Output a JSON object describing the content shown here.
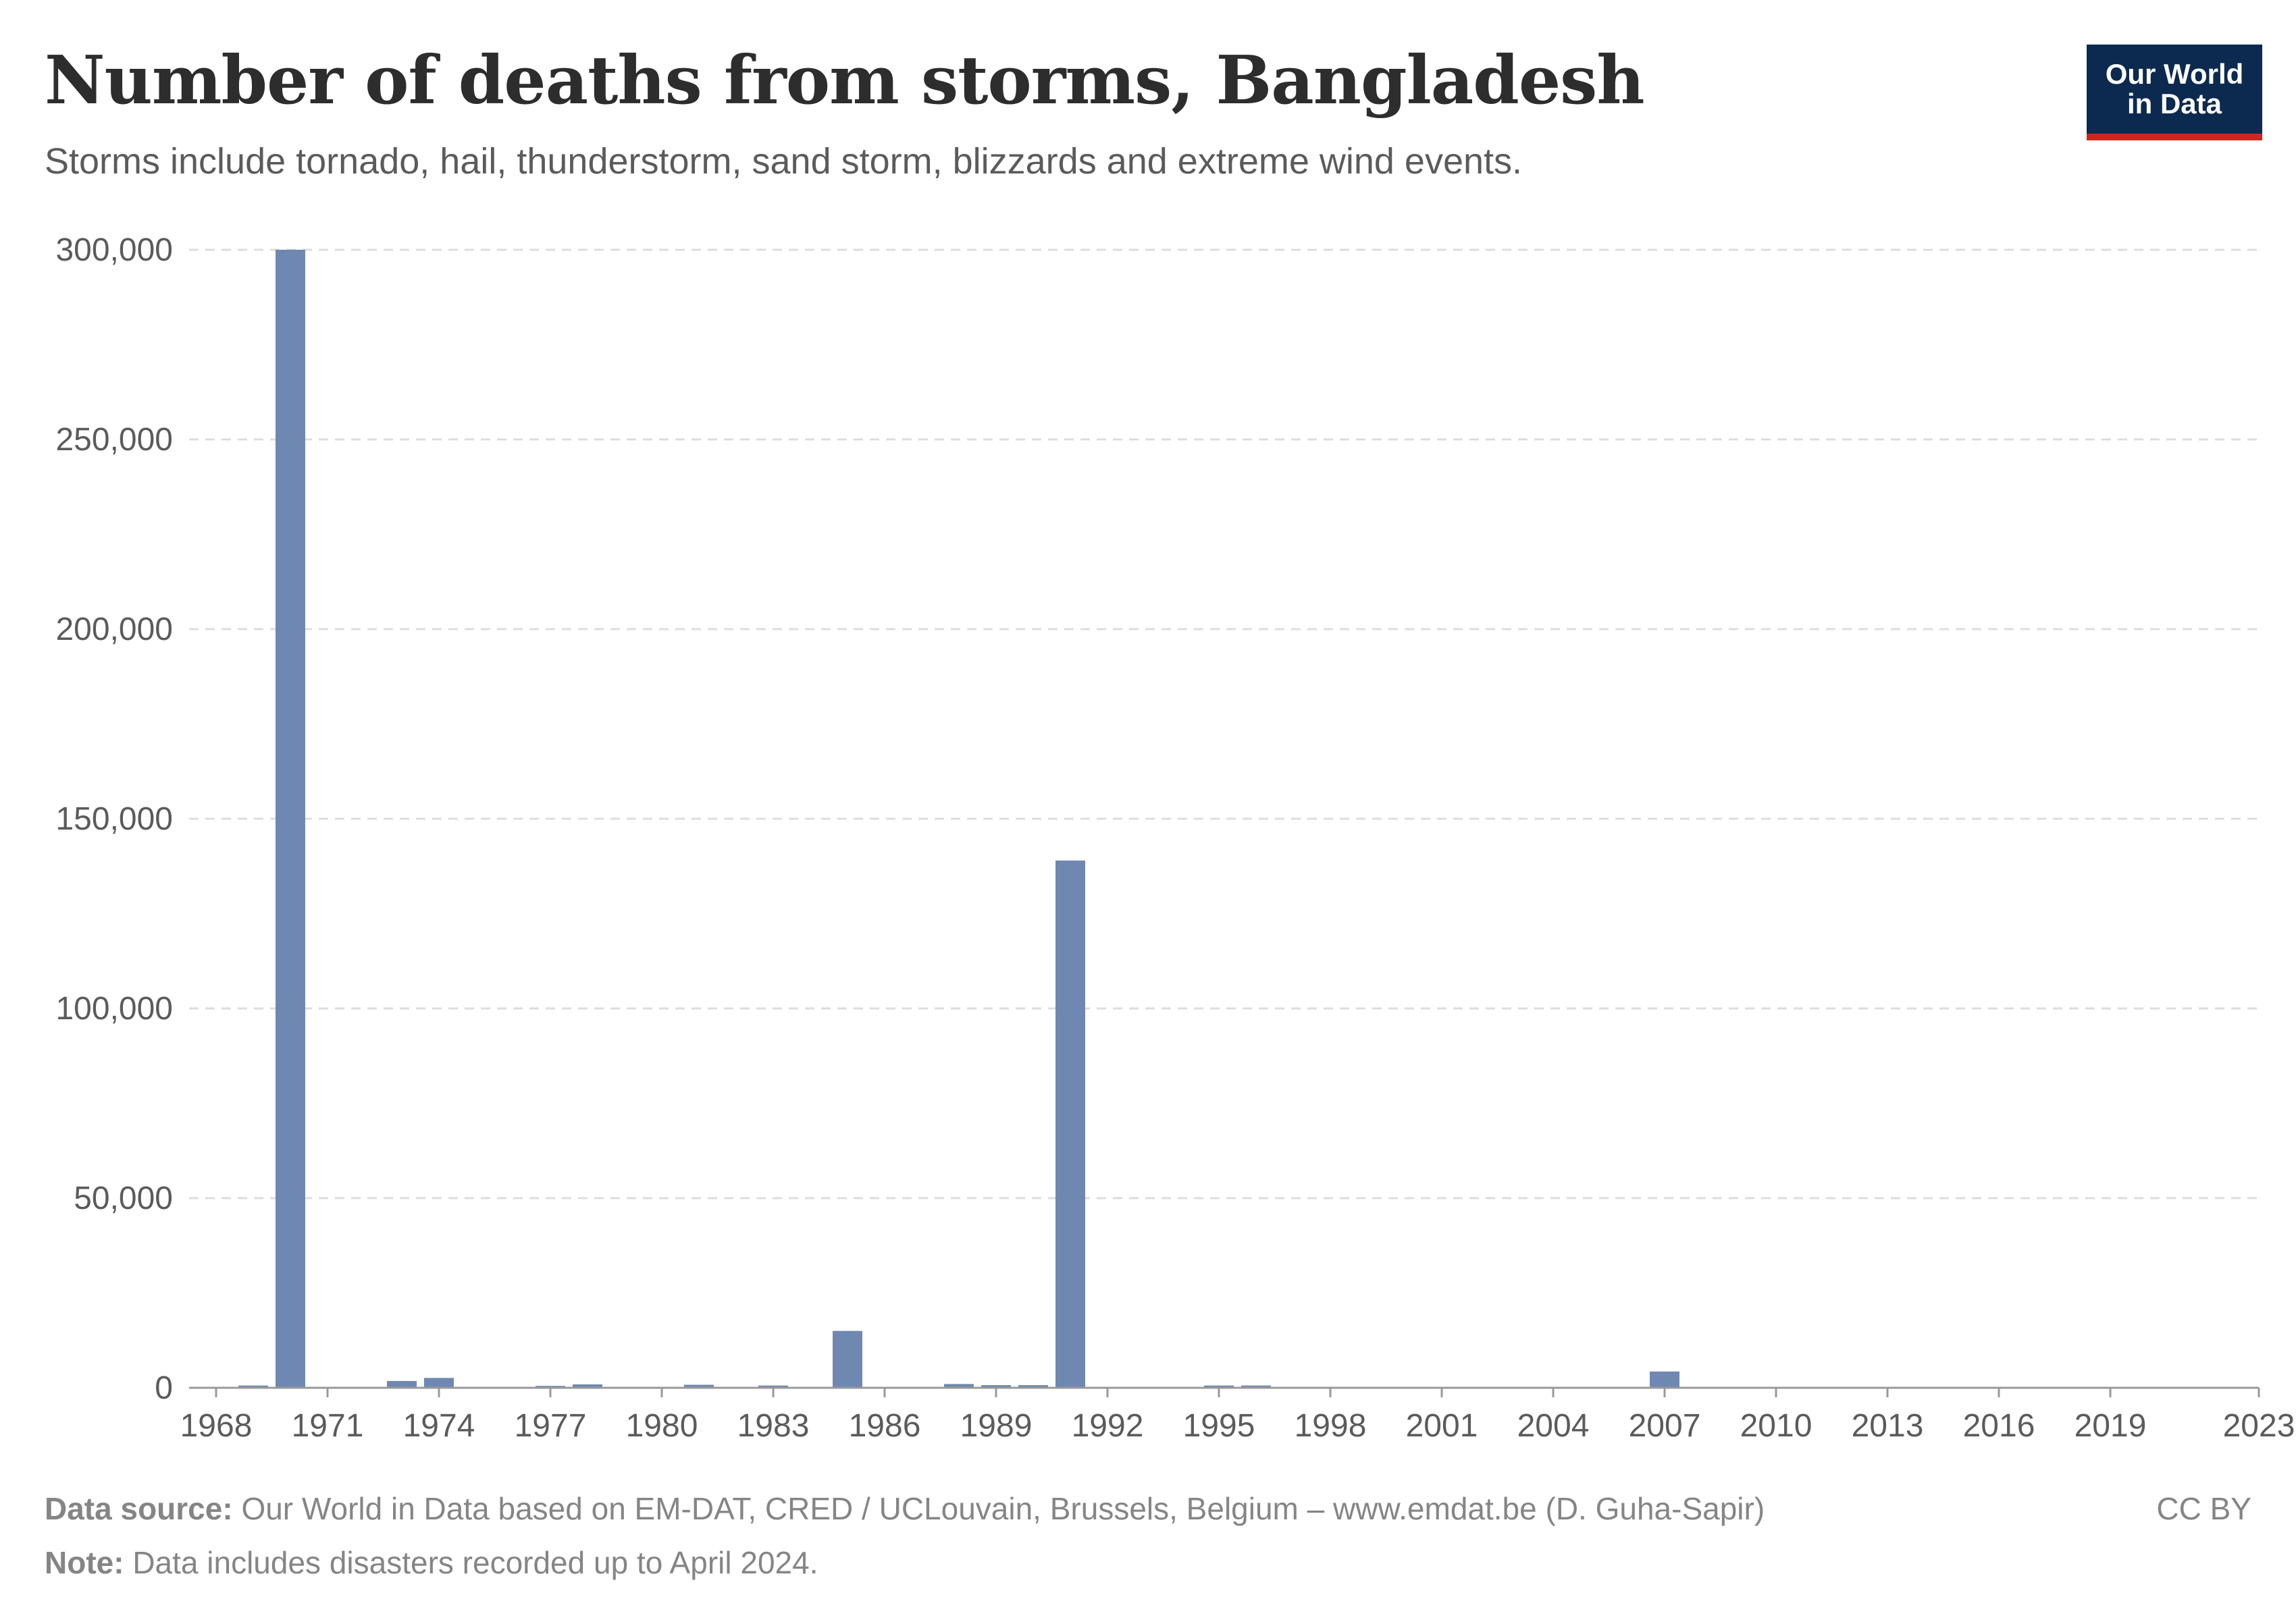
{
  "header": {
    "title": "Number of deaths from storms, Bangladesh",
    "subtitle": "Storms include tornado, hail, thunderstorm, sand storm, blizzards and extreme wind events."
  },
  "logo": {
    "line1": "Our World",
    "line2": "in Data",
    "bg_color": "#0c2a4f",
    "accent_color": "#ce261e"
  },
  "chart_data": {
    "type": "bar",
    "title": "Number of deaths from storms, Bangladesh",
    "xlabel": "",
    "ylabel": "",
    "bar_color": "#6f88b1",
    "grid": true,
    "xlim": [
      1968,
      2023
    ],
    "ylim": [
      0,
      300000
    ],
    "y_ticks": [
      0,
      50000,
      100000,
      150000,
      200000,
      250000,
      300000
    ],
    "y_tick_labels": [
      "0",
      "50,000",
      "100,000",
      "150,000",
      "200,000",
      "250,000",
      "300,000"
    ],
    "x_ticks": [
      1968,
      1971,
      1974,
      1977,
      1980,
      1983,
      1986,
      1989,
      1992,
      1995,
      1998,
      2001,
      2004,
      2007,
      2010,
      2013,
      2016,
      2019,
      2023
    ],
    "x_tick_labels": [
      "1968",
      "1971",
      "1974",
      "1977",
      "1980",
      "1983",
      "1986",
      "1989",
      "1992",
      "1995",
      "1998",
      "2001",
      "2004",
      "2007",
      "2010",
      "2013",
      "2016",
      "2019",
      "2023"
    ],
    "categories": [
      1969,
      1970,
      1971,
      1973,
      1974,
      1977,
      1978,
      1981,
      1983,
      1985,
      1986,
      1988,
      1989,
      1990,
      1991,
      1993,
      1994,
      1995,
      1996,
      1997,
      1998,
      2000,
      2002,
      2007,
      2008,
      2009
    ],
    "values": [
      600,
      300000,
      150,
      1800,
      2600,
      500,
      900,
      800,
      600,
      15000,
      150,
      1000,
      700,
      700,
      139000,
      200,
      200,
      600,
      600,
      200,
      100,
      100,
      100,
      4300,
      100,
      100
    ]
  },
  "footer": {
    "source_label": "Data source:",
    "source_text": "Our World in Data based on EM-DAT, CRED / UCLouvain, Brussels, Belgium – www.emdat.be (D. Guha-Sapir)",
    "note_label": "Note:",
    "note_text": "Data includes disasters recorded up to April 2024.",
    "license": "CC BY"
  }
}
